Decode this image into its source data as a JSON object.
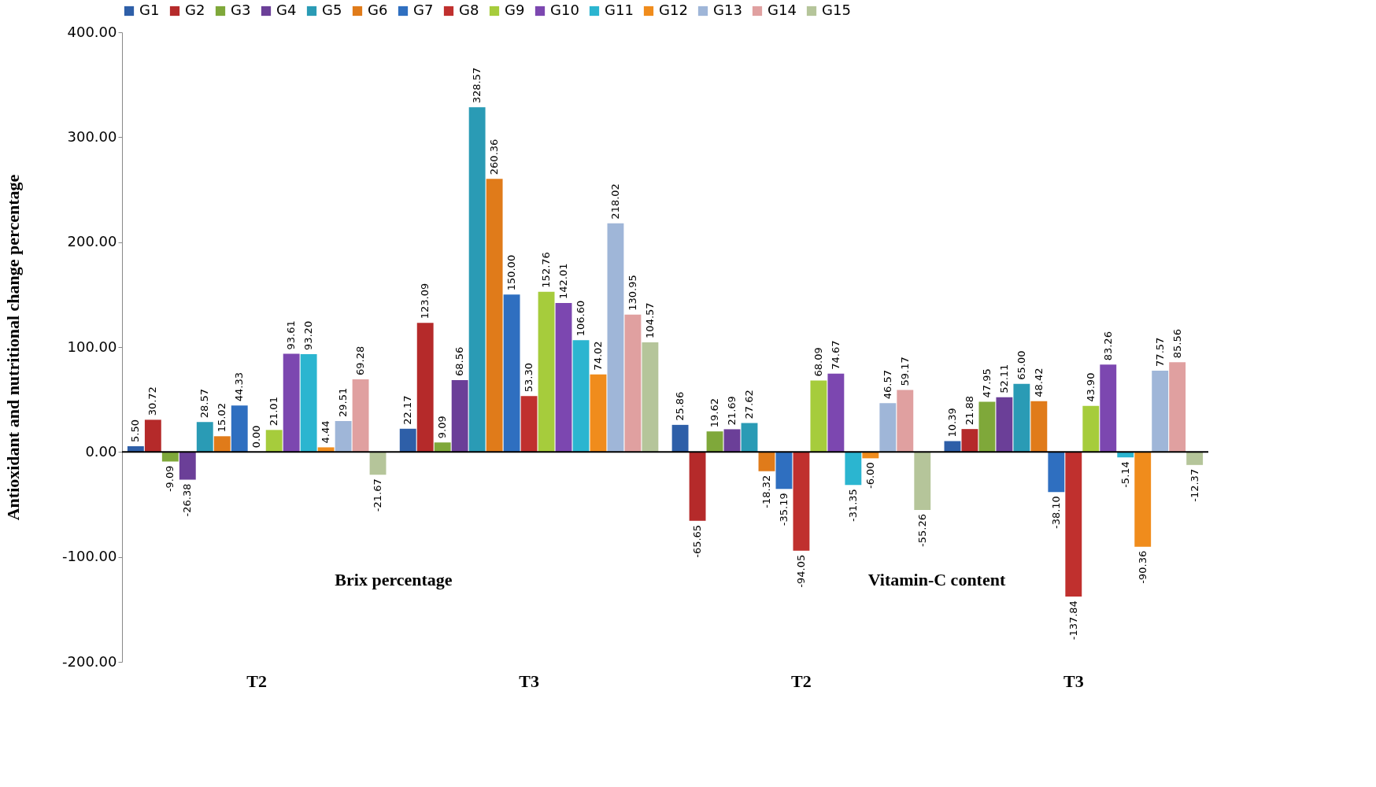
{
  "chart_data": {
    "type": "bar",
    "ylabel": "Antioxidant and nutritional change percentage",
    "categories": [
      "T2",
      "T3",
      "T2",
      "T3"
    ],
    "series": [
      {
        "name": "G1",
        "color": "#2e5fa8",
        "values": [
          5.5,
          22.17,
          25.86,
          10.39
        ],
        "value_labels": [
          "5.50",
          "22.17",
          "25.86",
          "10.39"
        ]
      },
      {
        "name": "G2",
        "color": "#b52a2a",
        "values": [
          30.72,
          123.09,
          -65.65,
          21.88
        ],
        "value_labels": [
          "30.72",
          "123.09",
          "-65.65",
          "21.88"
        ]
      },
      {
        "name": "G3",
        "color": "#7fa83a",
        "values": [
          -9.09,
          9.09,
          19.62,
          47.95
        ],
        "value_labels": [
          "-9.09",
          "9.09",
          "19.62",
          "47.95"
        ]
      },
      {
        "name": "G4",
        "color": "#6b3f98",
        "values": [
          -26.38,
          68.56,
          21.69,
          52.11
        ],
        "value_labels": [
          "-26.38",
          "68.56",
          "21.69",
          "52.11"
        ]
      },
      {
        "name": "G5",
        "color": "#2a9bb5",
        "values": [
          28.57,
          328.57,
          27.62,
          65
        ],
        "value_labels": [
          "28.57",
          "328.57",
          "27.62",
          "65.00"
        ]
      },
      {
        "name": "G6",
        "color": "#e07b1a",
        "values": [
          15.02,
          260.36,
          -18.32,
          48.42
        ],
        "value_labels": [
          "15.02",
          "260.36",
          "-18.32",
          "48.42"
        ]
      },
      {
        "name": "G7",
        "color": "#2f6fc0",
        "values": [
          44.33,
          150,
          -35.19,
          -38.1
        ],
        "value_labels": [
          "44.33",
          "150.00",
          "-35.19",
          "-38.10"
        ]
      },
      {
        "name": "G8",
        "color": "#c0302e",
        "values": [
          0,
          53.3,
          -94.05,
          -137.84
        ],
        "value_labels": [
          "0.00",
          "53.30",
          "-94.05",
          "-137.84"
        ]
      },
      {
        "name": "G9",
        "color": "#a6cc3c",
        "values": [
          21.01,
          152.76,
          68.09,
          43.9
        ],
        "value_labels": [
          "21.01",
          "152.76",
          "68.09",
          "43.90"
        ]
      },
      {
        "name": "G10",
        "color": "#7c47b0",
        "values": [
          93.61,
          142.01,
          74.67,
          83.26
        ],
        "value_labels": [
          "93.61",
          "142.01",
          "74.67",
          "83.26"
        ]
      },
      {
        "name": "G11",
        "color": "#2bb5d0",
        "values": [
          93.2,
          106.6,
          -31.35,
          -5.14
        ],
        "value_labels": [
          "93.20",
          "106.60",
          "-31.35",
          "-5.14"
        ]
      },
      {
        "name": "G12",
        "color": "#f08c1c",
        "values": [
          4.44,
          74.02,
          -6,
          -90.36
        ],
        "value_labels": [
          "4.44",
          "74.02",
          "-6.00",
          "-90.36"
        ]
      },
      {
        "name": "G13",
        "color": "#9fb6d8",
        "values": [
          29.51,
          218.02,
          46.57,
          77.57
        ],
        "value_labels": [
          "29.51",
          "218.02",
          "46.57",
          "77.57"
        ]
      },
      {
        "name": "G14",
        "color": "#e0a0a0",
        "values": [
          69.28,
          130.95,
          59.17,
          85.56
        ],
        "value_labels": [
          "69.28",
          "130.95",
          "59.17",
          "85.56"
        ]
      },
      {
        "name": "G15",
        "color": "#b5c59a",
        "values": [
          -21.67,
          104.57,
          -55.26,
          -12.37
        ],
        "value_labels": [
          "-21.67",
          "104.57",
          "-55.26",
          "-12.37"
        ]
      }
    ],
    "ylim": [
      -200,
      400
    ],
    "yticks": [
      {
        "value": -200,
        "label": "-200.00"
      },
      {
        "value": -100,
        "label": "-100.00"
      },
      {
        "value": 0,
        "label": "0.00"
      },
      {
        "value": 100,
        "label": "100.00"
      },
      {
        "value": 200,
        "label": "200.00"
      },
      {
        "value": 300,
        "label": "300.00"
      },
      {
        "value": 400,
        "label": "400.00"
      }
    ],
    "ref_lines": [
      {
        "axis": "y",
        "value": 0,
        "color": "#000000"
      }
    ],
    "annotations": [
      "Brix percentage",
      "Vitamin-C content"
    ],
    "grid": false,
    "legend": "top"
  }
}
